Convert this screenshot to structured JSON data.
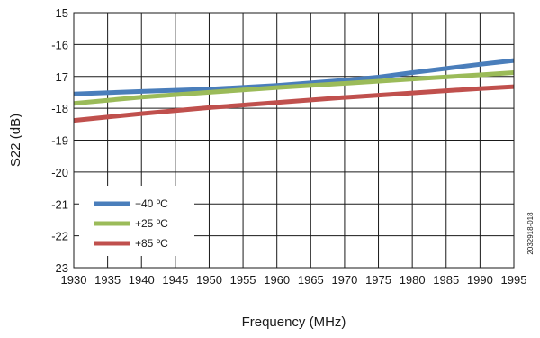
{
  "chart_data": {
    "type": "line",
    "title": "",
    "xlabel": "Frequency (MHz)",
    "ylabel": "S22 (dB)",
    "xlim": [
      1930,
      1995
    ],
    "ylim": [
      -23,
      -15
    ],
    "x_ticks": [
      1930,
      1935,
      1940,
      1945,
      1950,
      1955,
      1960,
      1965,
      1970,
      1975,
      1980,
      1985,
      1990,
      1995
    ],
    "y_ticks": [
      -15,
      -16,
      -17,
      -18,
      -19,
      -20,
      -21,
      -22,
      -23
    ],
    "grid": true,
    "legend_position": "bottom-left",
    "series": [
      {
        "name": "−40 ºC",
        "color": "#4a7ebb",
        "x": [
          1930,
          1940,
          1950,
          1960,
          1970,
          1975,
          1980,
          1985,
          1990,
          1995
        ],
        "y": [
          -17.55,
          -17.47,
          -17.4,
          -17.28,
          -17.12,
          -17.02,
          -16.88,
          -16.75,
          -16.62,
          -16.5
        ]
      },
      {
        "name": "+25 ºC",
        "color": "#9bbb59",
        "x": [
          1930,
          1940,
          1950,
          1960,
          1970,
          1980,
          1990,
          1995
        ],
        "y": [
          -17.85,
          -17.65,
          -17.5,
          -17.35,
          -17.22,
          -17.08,
          -16.95,
          -16.88
        ]
      },
      {
        "name": "+85 ºC",
        "color": "#c0504d",
        "x": [
          1930,
          1940,
          1950,
          1960,
          1970,
          1980,
          1990,
          1995
        ],
        "y": [
          -18.38,
          -18.17,
          -17.98,
          -17.82,
          -17.66,
          -17.52,
          -17.38,
          -17.32
        ]
      }
    ],
    "annotation": "2032918-018"
  }
}
